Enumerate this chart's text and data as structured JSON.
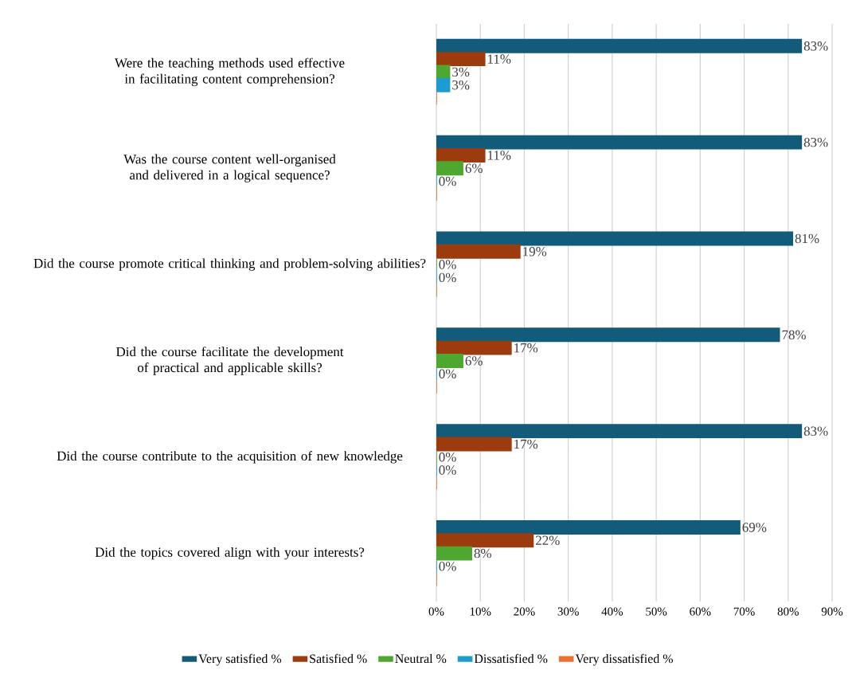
{
  "chart_data": {
    "type": "bar",
    "orientation": "horizontal",
    "categories": [
      "Were the teaching methods used effective in facilitating content comprehension?",
      "Was the course content well-organised and delivered in a logical sequence?",
      "Did the course promote critical thinking and problem-solving abilities?",
      "Did the course facilitate the development of practical and applicable skills?",
      "Did the course contribute to the acquisition of new knowledge",
      "Did the topics covered align with your interests?"
    ],
    "series": [
      {
        "name": "Very satisfied %",
        "color": "#135b7a",
        "values": [
          83,
          83,
          81,
          78,
          83,
          69
        ],
        "value_labels": [
          "83%",
          "83%",
          "81%",
          "78%",
          "83%",
          "69%"
        ]
      },
      {
        "name": "Satisfied %",
        "color": "#9c3c0e",
        "values": [
          11,
          11,
          19,
          17,
          17,
          22
        ],
        "value_labels": [
          "11%",
          "11%",
          "19%",
          "17%",
          "17%",
          "22%"
        ]
      },
      {
        "name": "Neutral %",
        "color": "#4ea72e",
        "values": [
          3,
          6,
          0,
          6,
          0,
          8
        ],
        "value_labels": [
          "3%",
          "6%",
          "0%",
          "6%",
          "0%",
          "8%"
        ]
      },
      {
        "name": "Dissatisfied %",
        "color": "#1c9cd0",
        "values": [
          3,
          0,
          0,
          0,
          0,
          0
        ],
        "value_labels": [
          "3%",
          "0%",
          "0%",
          "0%",
          "0%",
          "0%"
        ]
      },
      {
        "name": "Very dissatisfied %",
        "color": "#e97132",
        "values": [
          0,
          0,
          0,
          0,
          0,
          0
        ]
      }
    ],
    "xlim": [
      0,
      90
    ],
    "xticks": [
      {
        "value": 0,
        "label": "0%"
      },
      {
        "value": 10,
        "label": "10%"
      },
      {
        "value": 20,
        "label": "20%"
      },
      {
        "value": 30,
        "label": "30%"
      },
      {
        "value": 40,
        "label": "40%"
      },
      {
        "value": 50,
        "label": "50%"
      },
      {
        "value": 60,
        "label": "60%"
      },
      {
        "value": 70,
        "label": "70%"
      },
      {
        "value": 80,
        "label": "80%"
      },
      {
        "value": 90,
        "label": "90%"
      }
    ],
    "grid": "x",
    "legend": "bottom"
  }
}
